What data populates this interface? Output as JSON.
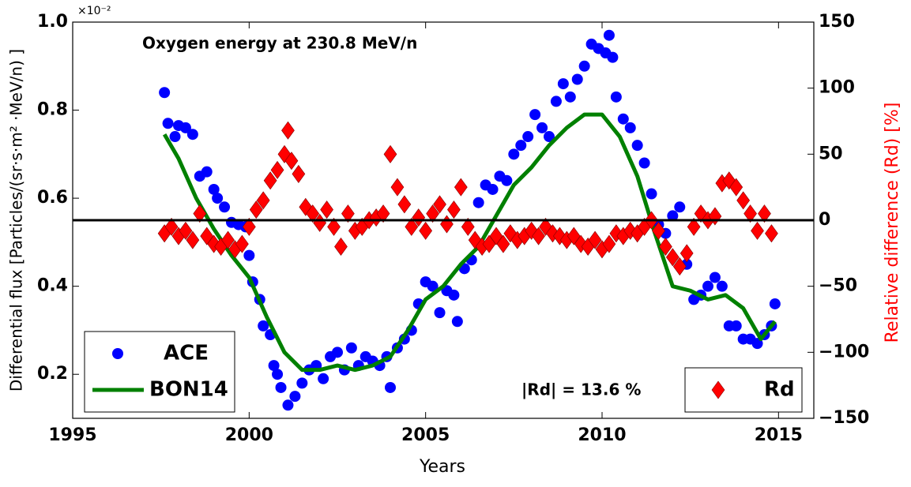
{
  "chart_data": {
    "type": "scatter",
    "title": "Oxygen energy at 230.8 MeV/n",
    "annotation": "|Rd| = 13.6 %",
    "x_label": "Years",
    "y_label": "Differential flux [Particles/(sr·s·m² ·MeV/n) ]",
    "y_multiplier": "×10⁻²",
    "y2_label": "Relative difference (Rd) [%]",
    "y2_label_color": "#ff0000",
    "xlim": [
      1995,
      2016
    ],
    "xticks": [
      1995,
      2000,
      2005,
      2010,
      2015
    ],
    "ylim": [
      0.1,
      1.0
    ],
    "yticks": [
      0.2,
      0.4,
      0.6,
      0.8,
      {
        "value": 1.0,
        "label": "1.0"
      }
    ],
    "y2lim": [
      -150,
      150
    ],
    "y2ticks": [
      {
        "value": -150,
        "label": "−150"
      },
      {
        "value": -100,
        "label": "−100"
      },
      {
        "value": -50,
        "label": "−50"
      },
      0,
      50,
      100,
      150
    ],
    "grid": false,
    "reference_line": {
      "axis": "y2",
      "value": 0,
      "color": "#000000"
    },
    "series": [
      {
        "name": "ACE",
        "color": "#0000ff",
        "mode": "marker",
        "marker": "circle",
        "legend": "lower left",
        "x": [
          1997.6,
          1997.7,
          1997.9,
          1998.0,
          1998.2,
          1998.4,
          1998.6,
          1998.8,
          1999.0,
          1999.1,
          1999.3,
          1999.5,
          1999.7,
          1999.9,
          2000.0,
          2000.1,
          2000.3,
          2000.4,
          2000.6,
          2000.7,
          2000.8,
          2000.9,
          2001.1,
          2001.3,
          2001.5,
          2001.7,
          2001.9,
          2002.1,
          2002.3,
          2002.5,
          2002.7,
          2002.9,
          2003.1,
          2003.3,
          2003.5,
          2003.7,
          2003.9,
          2004.0,
          2004.2,
          2004.4,
          2004.6,
          2004.8,
          2005.0,
          2005.2,
          2005.4,
          2005.6,
          2005.8,
          2005.9,
          2006.1,
          2006.3,
          2006.5,
          2006.7,
          2006.9,
          2007.1,
          2007.3,
          2007.5,
          2007.7,
          2007.9,
          2008.1,
          2008.3,
          2008.5,
          2008.7,
          2008.9,
          2009.1,
          2009.3,
          2009.5,
          2009.7,
          2009.9,
          2010.1,
          2010.2,
          2010.3,
          2010.4,
          2010.6,
          2010.8,
          2011.0,
          2011.2,
          2011.4,
          2011.6,
          2011.8,
          2012.0,
          2012.2,
          2012.4,
          2012.6,
          2012.8,
          2013.0,
          2013.2,
          2013.4,
          2013.6,
          2013.8,
          2014.0,
          2014.2,
          2014.4,
          2014.6,
          2014.8,
          2014.9
        ],
        "values": [
          0.84,
          0.77,
          0.74,
          0.765,
          0.76,
          0.745,
          0.65,
          0.66,
          0.62,
          0.6,
          0.58,
          0.545,
          0.54,
          0.535,
          0.47,
          0.41,
          0.37,
          0.31,
          0.29,
          0.22,
          0.2,
          0.17,
          0.13,
          0.15,
          0.18,
          0.21,
          0.22,
          0.19,
          0.24,
          0.25,
          0.21,
          0.26,
          0.22,
          0.24,
          0.23,
          0.22,
          0.24,
          0.17,
          0.26,
          0.28,
          0.3,
          0.36,
          0.41,
          0.4,
          0.34,
          0.39,
          0.38,
          0.32,
          0.44,
          0.46,
          0.59,
          0.63,
          0.62,
          0.65,
          0.64,
          0.7,
          0.72,
          0.74,
          0.79,
          0.76,
          0.74,
          0.82,
          0.86,
          0.83,
          0.87,
          0.9,
          0.95,
          0.94,
          0.93,
          0.97,
          0.92,
          0.83,
          0.78,
          0.76,
          0.72,
          0.68,
          0.61,
          0.54,
          0.52,
          0.56,
          0.58,
          0.45,
          0.37,
          0.38,
          0.4,
          0.42,
          0.4,
          0.31,
          0.31,
          0.28,
          0.28,
          0.27,
          0.29,
          0.31,
          0.36
        ]
      },
      {
        "name": "BON14",
        "color": "#008000",
        "mode": "line",
        "legend": "lower left",
        "x": [
          1997.6,
          1998.0,
          1998.5,
          1999.0,
          1999.5,
          2000.0,
          2000.5,
          2001.0,
          2001.5,
          2002.0,
          2002.5,
          2003.0,
          2003.5,
          2004.0,
          2004.5,
          2005.0,
          2005.5,
          2006.0,
          2006.5,
          2007.0,
          2007.5,
          2008.0,
          2008.5,
          2009.0,
          2009.5,
          2010.0,
          2010.5,
          2011.0,
          2011.5,
          2012.0,
          2012.5,
          2013.0,
          2013.5,
          2014.0,
          2014.5,
          2014.9
        ],
        "values": [
          0.745,
          0.69,
          0.6,
          0.53,
          0.47,
          0.42,
          0.33,
          0.25,
          0.21,
          0.21,
          0.22,
          0.21,
          0.22,
          0.24,
          0.3,
          0.37,
          0.4,
          0.45,
          0.49,
          0.56,
          0.63,
          0.67,
          0.72,
          0.76,
          0.79,
          0.79,
          0.74,
          0.65,
          0.52,
          0.4,
          0.39,
          0.37,
          0.38,
          0.35,
          0.28,
          0.32
        ]
      },
      {
        "name": "Rd",
        "color": "#ff0000",
        "mode": "marker",
        "marker": "diamond",
        "axis": "y2",
        "legend": "lower right",
        "x": [
          1997.6,
          1997.8,
          1998.0,
          1998.2,
          1998.4,
          1998.6,
          1998.8,
          1999.0,
          1999.2,
          1999.4,
          1999.6,
          1999.8,
          2000.0,
          2000.2,
          2000.4,
          2000.6,
          2000.8,
          2001.0,
          2001.1,
          2001.2,
          2001.4,
          2001.6,
          2001.8,
          2002.0,
          2002.2,
          2002.4,
          2002.6,
          2002.8,
          2003.0,
          2003.2,
          2003.4,
          2003.6,
          2003.8,
          2004.0,
          2004.2,
          2004.4,
          2004.6,
          2004.8,
          2005.0,
          2005.2,
          2005.4,
          2005.6,
          2005.8,
          2006.0,
          2006.2,
          2006.4,
          2006.6,
          2006.8,
          2007.0,
          2007.2,
          2007.4,
          2007.6,
          2007.8,
          2008.0,
          2008.2,
          2008.4,
          2008.6,
          2008.8,
          2009.0,
          2009.2,
          2009.4,
          2009.6,
          2009.8,
          2010.0,
          2010.2,
          2010.4,
          2010.6,
          2010.8,
          2011.0,
          2011.2,
          2011.4,
          2011.6,
          2011.8,
          2012.0,
          2012.2,
          2012.4,
          2012.6,
          2012.8,
          2013.0,
          2013.2,
          2013.4,
          2013.6,
          2013.8,
          2014.0,
          2014.2,
          2014.4,
          2014.6,
          2014.8
        ],
        "values": [
          -10,
          -5,
          -12,
          -8,
          -15,
          5,
          -12,
          -18,
          -20,
          -15,
          -22,
          -18,
          -5,
          8,
          15,
          30,
          38,
          50,
          68,
          45,
          35,
          10,
          5,
          -2,
          8,
          -5,
          -20,
          5,
          -8,
          -5,
          0,
          2,
          5,
          50,
          25,
          12,
          -5,
          2,
          -8,
          5,
          12,
          -3,
          8,
          25,
          -5,
          -15,
          -20,
          -18,
          -12,
          -18,
          -10,
          -15,
          -12,
          -8,
          -12,
          -5,
          -10,
          -12,
          -15,
          -12,
          -18,
          -20,
          -15,
          -22,
          -18,
          -10,
          -12,
          -8,
          -10,
          -5,
          0,
          -8,
          -20,
          -28,
          -35,
          -25,
          -5,
          5,
          0,
          3,
          28,
          30,
          25,
          15,
          5,
          -8,
          5,
          -10
        ]
      }
    ]
  }
}
